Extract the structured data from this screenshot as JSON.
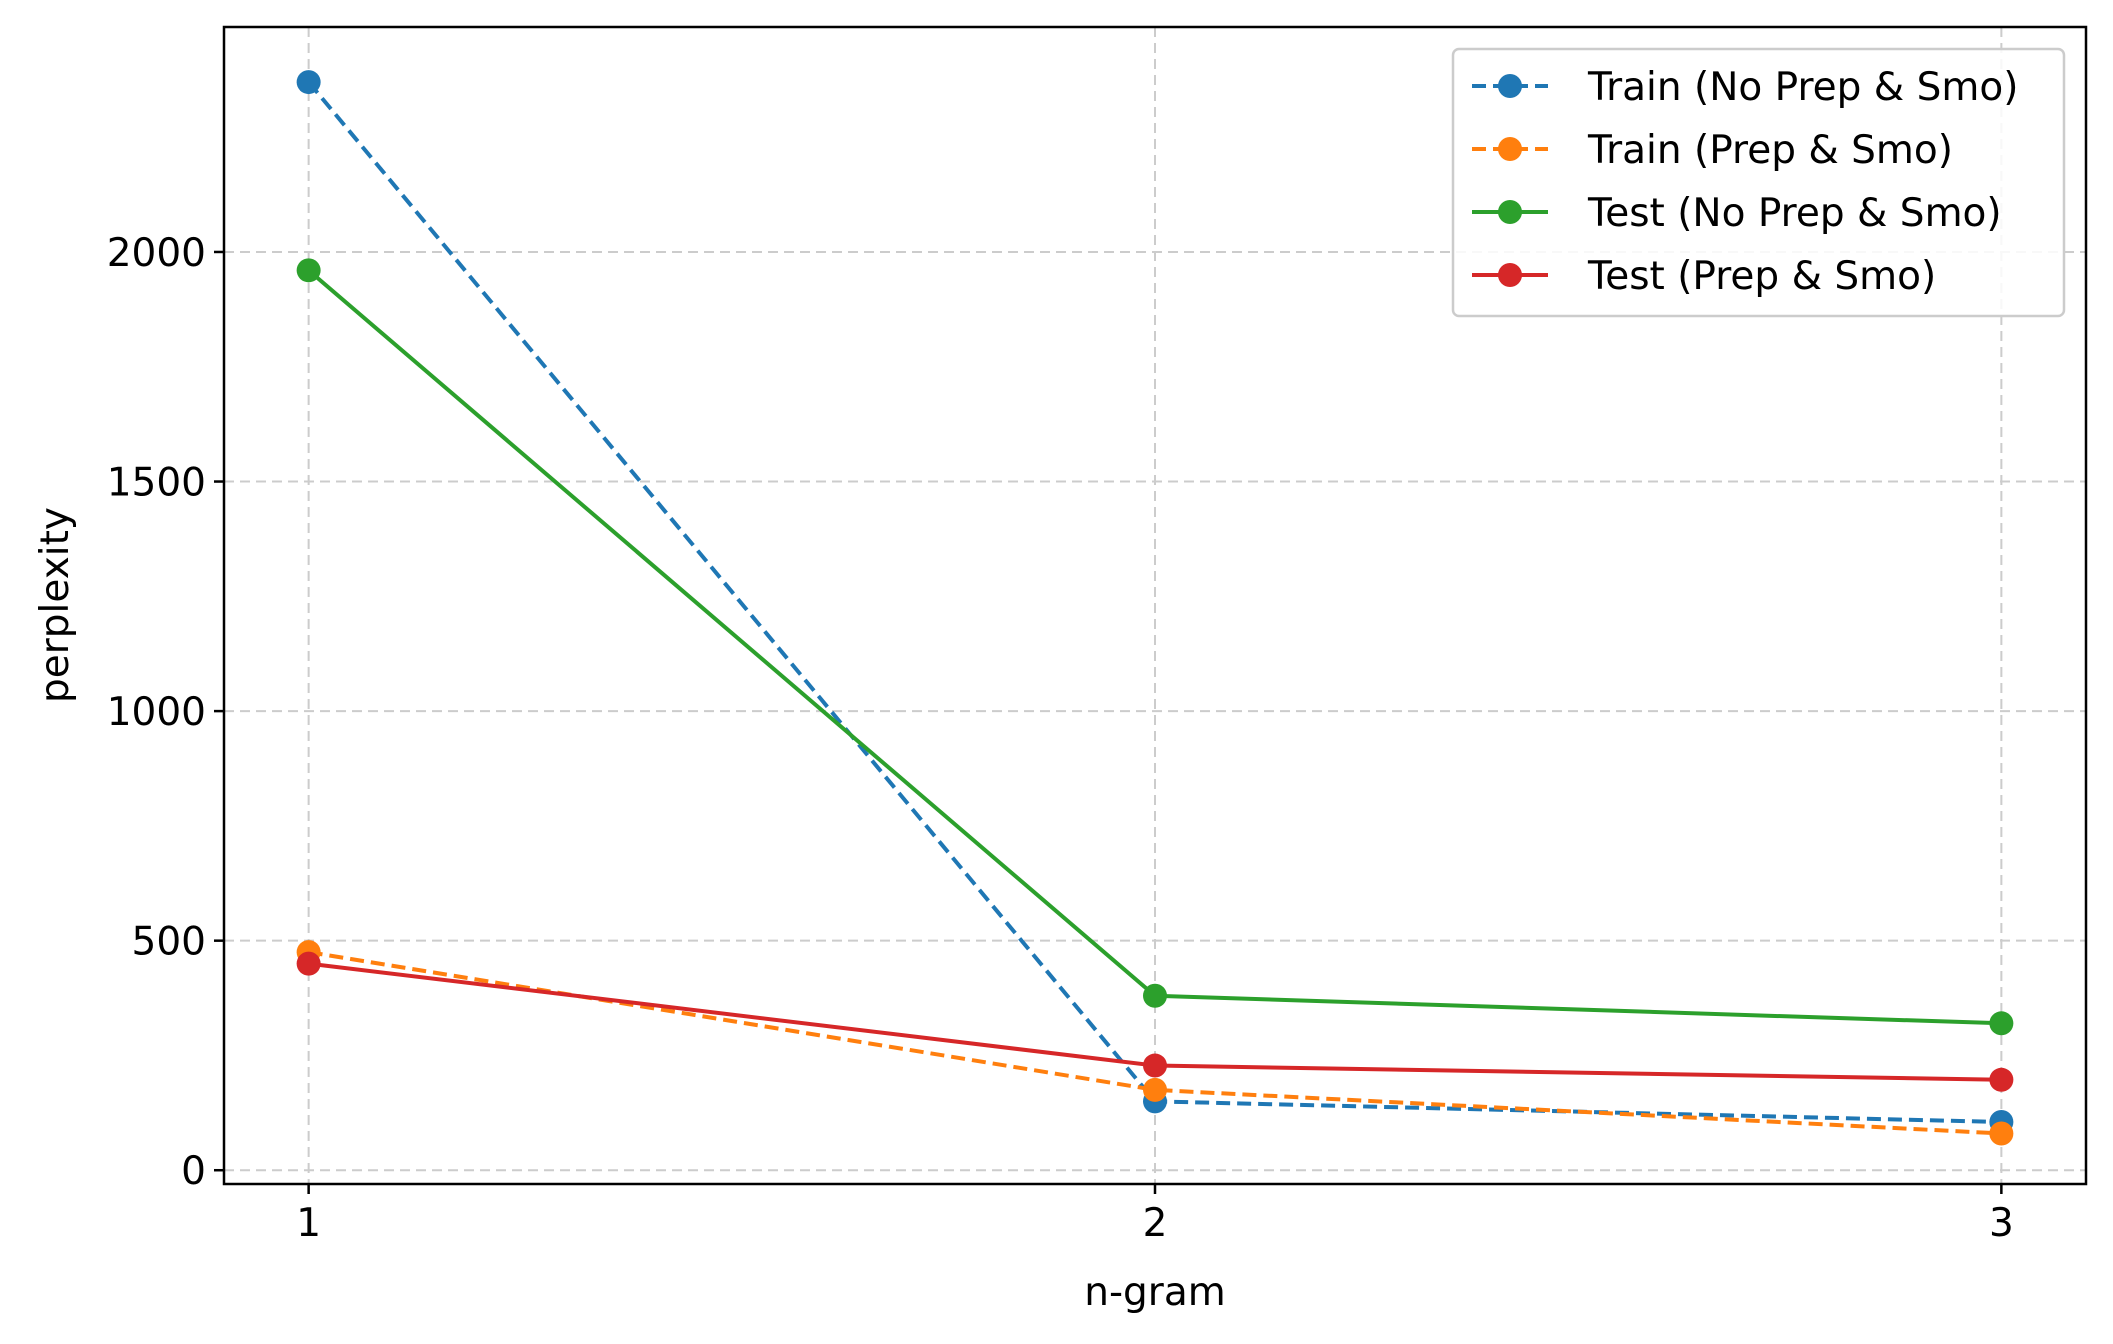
{
  "chart_data": {
    "type": "line",
    "title": "",
    "xlabel": "n-gram",
    "ylabel": "perplexity",
    "x": [
      1,
      2,
      3
    ],
    "x_tick_labels": [
      "1",
      "2",
      "3"
    ],
    "xlim": [
      0.9,
      3.1
    ],
    "y_ticks": [
      0,
      500,
      1000,
      1500,
      2000
    ],
    "y_tick_labels": [
      "0",
      "500",
      "1000",
      "1500",
      "2000"
    ],
    "ylim": [
      -30,
      2490
    ],
    "grid": true,
    "legend_position": "top-right",
    "series": [
      {
        "name": "Train (No Prep & Smo)",
        "values": [
          2370,
          150,
          105
        ],
        "color": "#1f77b4",
        "linestyle": "dashed",
        "marker": "circle"
      },
      {
        "name": "Train (Prep & Smo)",
        "values": [
          475,
          175,
          80
        ],
        "color": "#ff7f0e",
        "linestyle": "dashed",
        "marker": "circle"
      },
      {
        "name": "Test (No Prep & Smo)",
        "values": [
          1960,
          380,
          320
        ],
        "color": "#2ca02c",
        "linestyle": "solid",
        "marker": "circle"
      },
      {
        "name": "Test (Prep & Smo)",
        "values": [
          450,
          228,
          197
        ],
        "color": "#d62728",
        "linestyle": "solid",
        "marker": "circle"
      }
    ]
  }
}
